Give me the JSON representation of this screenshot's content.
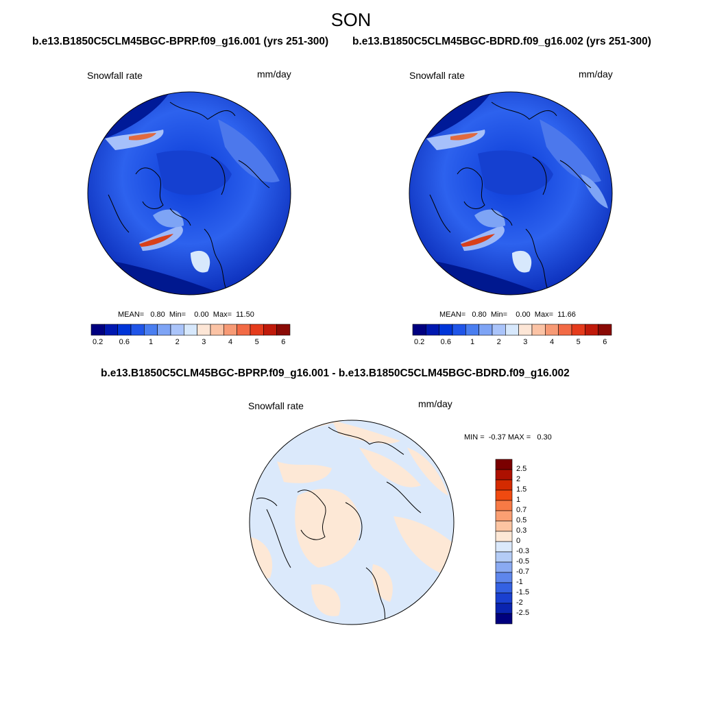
{
  "season": "SON",
  "panels": [
    {
      "title": "b.e13.B1850C5CLM45BGC-BPRP.f09_g16.001 (yrs 251-300)",
      "variable": "Snowfall rate",
      "units": "mm/day",
      "stats": "MEAN=   0.80  Min=    0.00  Max=  11.50"
    },
    {
      "title": "b.e13.B1850C5CLM45BGC-BDRD.f09_g16.002 (yrs 251-300)",
      "variable": "Snowfall rate",
      "units": "mm/day",
      "stats": "MEAN=   0.80  Min=    0.00  Max=  11.66"
    }
  ],
  "diff_panel": {
    "title": "b.e13.B1850C5CLM45BGC-BPRP.f09_g16.001 - b.e13.B1850C5CLM45BGC-BDRD.f09_g16.002",
    "variable": "Snowfall rate",
    "units": "mm/day",
    "stats": "MIN =  -0.37 MAX =   0.30"
  },
  "colorbar_abs": {
    "colors": [
      "#000080",
      "#0018b0",
      "#0035d8",
      "#2055e8",
      "#4a7ef0",
      "#7ea4f5",
      "#aac4fa",
      "#d7e8fc",
      "#fde6d6",
      "#fbc3a5",
      "#f79a75",
      "#f26a45",
      "#e53b1c",
      "#c01a0a",
      "#8a0a05"
    ],
    "labels": [
      "0.2",
      "0.6",
      "1",
      "2",
      "3",
      "4",
      "5",
      "6"
    ]
  },
  "colorbar_diff": {
    "colors": [
      "#7a0000",
      "#ad1000",
      "#d42a00",
      "#f04a10",
      "#f77a45",
      "#fa9f72",
      "#fcc5a2",
      "#fde8d6",
      "#dbe9fb",
      "#b4ccf6",
      "#8aaaf2",
      "#5e86ec",
      "#3461e2",
      "#1a40d0",
      "#0a24b0",
      "#00007e"
    ],
    "labels": [
      "2.5",
      "2",
      "1.5",
      "1",
      "0.7",
      "0.5",
      "0.3",
      "0",
      "-0.3",
      "-0.5",
      "-0.7",
      "-1",
      "-1.5",
      "-2",
      "-2.5"
    ]
  }
}
